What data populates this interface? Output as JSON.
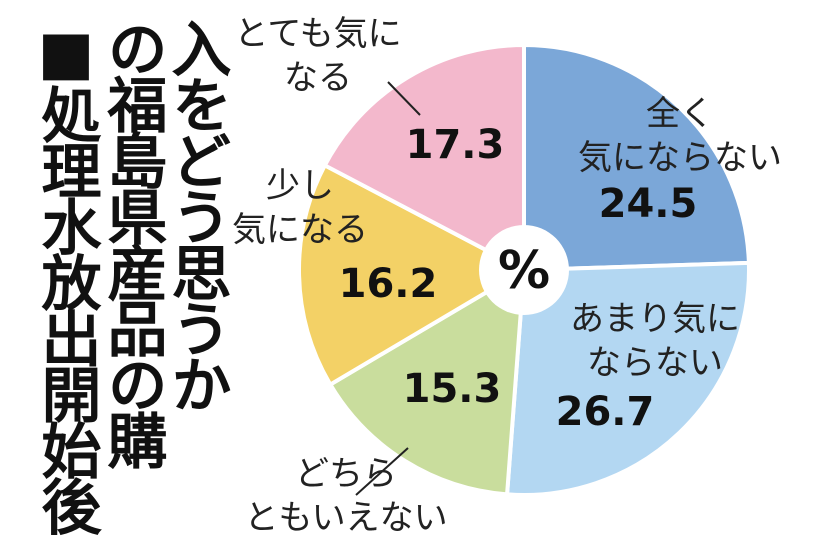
{
  "chart_title": {
    "lines": [
      "■処理水放出開始後",
      "の福島県産品の購",
      "入をどう思うか"
    ]
  },
  "chart_data": {
    "type": "pie",
    "title": "■処理水放出開始後の福島県産品の購入をどう思うか",
    "center_label": "%",
    "start": "12 o'clock, clockwise",
    "slices": [
      {
        "label_lines": [
          "全く",
          "気にならない"
        ],
        "value": 24.5,
        "value_text": "24.5",
        "color": "#7ba7d8"
      },
      {
        "label_lines": [
          "あまり気に",
          "ならない"
        ],
        "value": 26.7,
        "value_text": "26.7",
        "color": "#b3d7f2"
      },
      {
        "label_lines": [
          "どちら",
          "ともいえない"
        ],
        "value": 15.3,
        "value_text": "15.3",
        "color": "#c9dd9d"
      },
      {
        "label_lines": [
          "少し",
          "気になる"
        ],
        "value": 16.2,
        "value_text": "16.2",
        "color": "#f3d166"
      },
      {
        "label_lines": [
          "とても気に",
          "なる"
        ],
        "value": 17.3,
        "value_text": "17.3",
        "color": "#f3b8cc"
      }
    ]
  }
}
